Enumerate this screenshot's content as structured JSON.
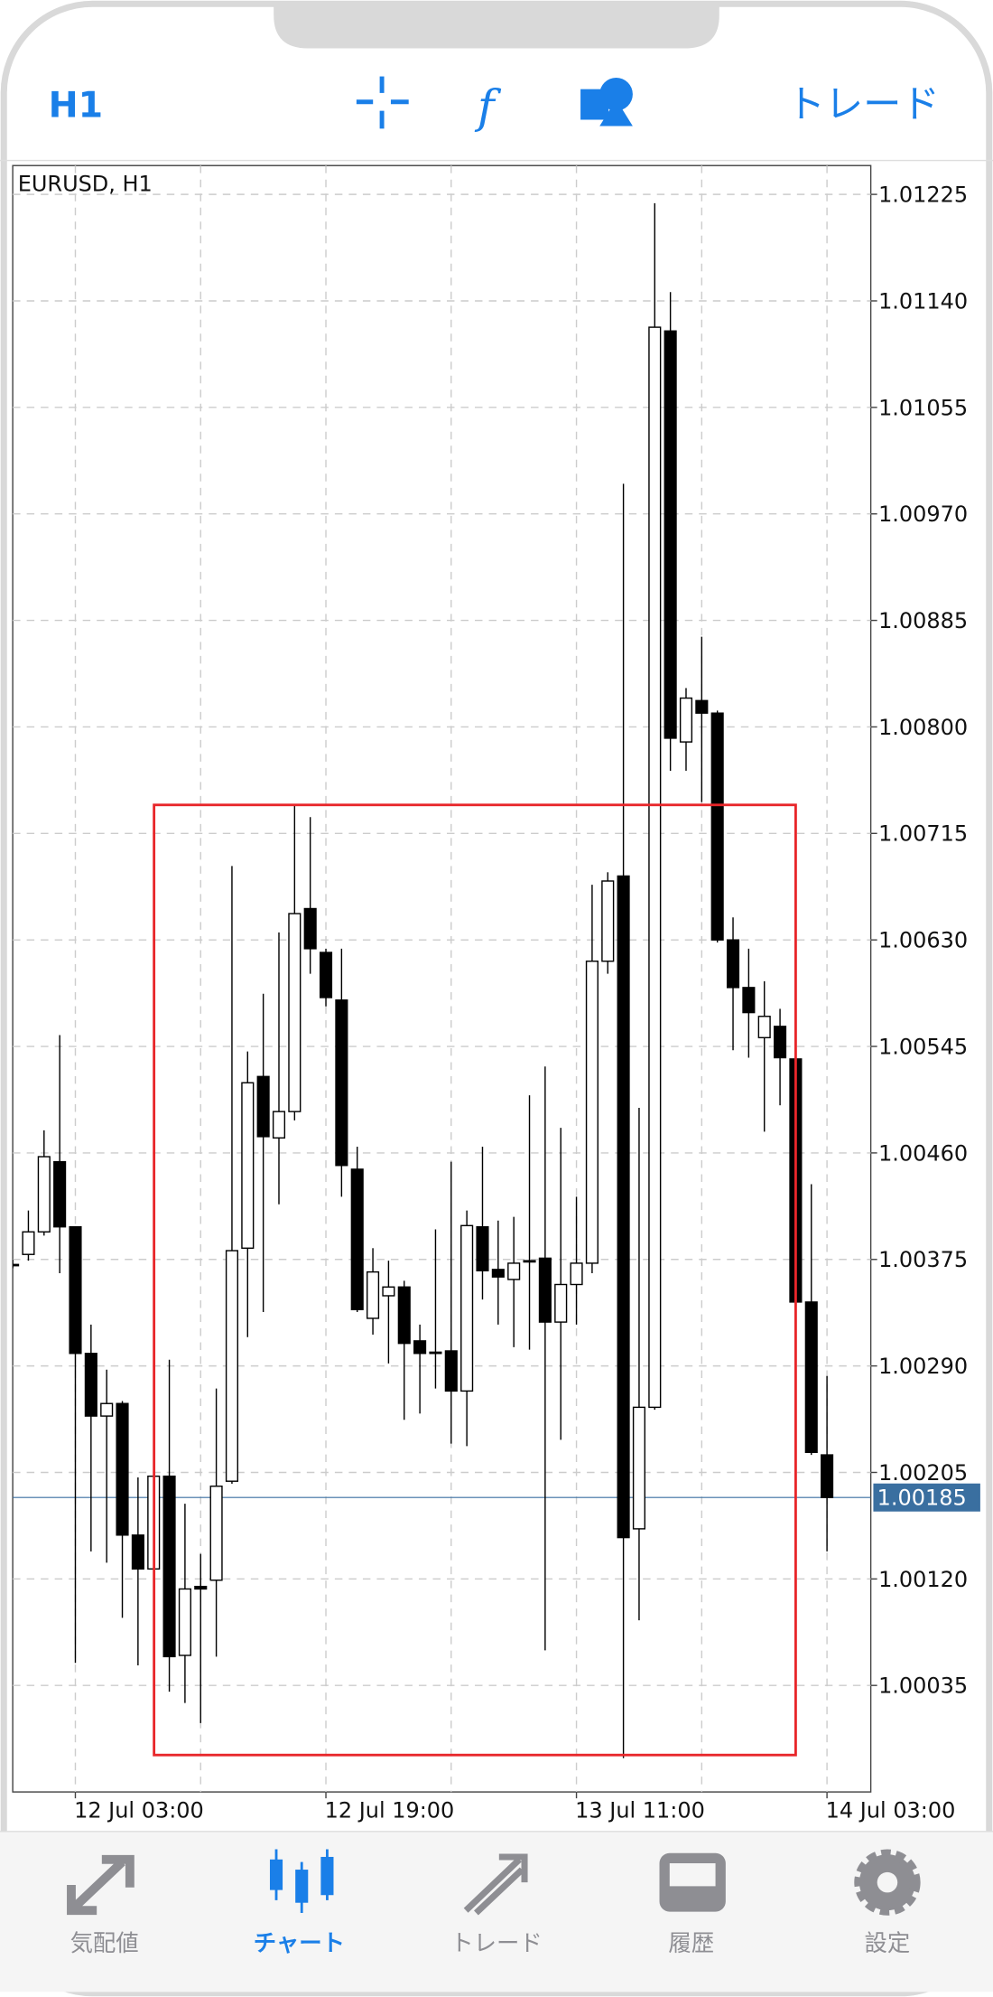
{
  "toolbar": {
    "timeframe": "H1",
    "trade": "トレード"
  },
  "chart_data": {
    "type": "candlestick",
    "title": "EURUSD, H1",
    "categories": [
      null,
      null,
      null,
      null,
      "12 Jul 03:00",
      null,
      null,
      null,
      null,
      null,
      null,
      null,
      null,
      null,
      null,
      null,
      null,
      null,
      null,
      null,
      "12 Jul 19:00",
      null,
      null,
      null,
      null,
      null,
      null,
      null,
      null,
      null,
      null,
      null,
      null,
      null,
      null,
      null,
      "13 Jul 11:00",
      null,
      null,
      null,
      null,
      null,
      null,
      null,
      null,
      null,
      null,
      null,
      null,
      null,
      null,
      null,
      "14 Jul 03:00"
    ],
    "open": [
      1.00371,
      1.00379,
      1.00397,
      1.00453,
      1.00401,
      1.003,
      1.0025,
      1.0026,
      1.00155,
      1.00128,
      1.00202,
      1.00059,
      1.00114,
      1.00119,
      1.00198,
      1.00384,
      1.00521,
      1.00472,
      1.00493,
      1.00655,
      1.0062,
      1.00582,
      1.00447,
      1.00328,
      1.00346,
      1.00353,
      1.0031,
      1.00301,
      1.00302,
      1.0027,
      1.00401,
      1.00367,
      1.00359,
      1.00373,
      1.00376,
      1.00325,
      1.00355,
      1.00372,
      1.00613,
      1.00681,
      1.0016,
      1.00257,
      1.01116,
      1.00788,
      1.00821,
      1.00811,
      1.0063,
      1.00592,
      1.00552,
      1.00561,
      1.00535,
      1.00341,
      1.00219
    ],
    "high": [
      1.00375,
      1.00414,
      1.00478,
      1.00554,
      1.00401,
      1.00323,
      1.00287,
      1.00262,
      1.00201,
      1.00211,
      1.00295,
      1.0018,
      1.0014,
      1.00272,
      1.00689,
      1.00541,
      1.00587,
      1.00636,
      1.00738,
      1.00728,
      1.00623,
      1.00623,
      1.00465,
      1.00384,
      1.00374,
      1.00358,
      1.00323,
      1.00399,
      1.00453,
      1.00414,
      1.00465,
      1.00406,
      1.00409,
      1.00506,
      1.00529,
      1.0048,
      1.00425,
      1.00674,
      1.00684,
      1.00994,
      1.00496,
      1.01218,
      1.01147,
      1.00831,
      1.00872,
      1.00813,
      1.00648,
      1.00623,
      1.00597,
      1.00575,
      1.00536,
      1.00435,
      1.00282
    ],
    "low": [
      1.00368,
      1.00374,
      1.00394,
      1.00364,
      1.00053,
      1.00142,
      1.00133,
      1.00089,
      1.00051,
      1.00125,
      1.0003,
      1.00021,
      1.00005,
      1.00058,
      1.00196,
      1.00313,
      1.00333,
      1.00419,
      1.00486,
      1.00603,
      1.00577,
      1.00425,
      1.00333,
      1.00315,
      1.00292,
      1.00247,
      1.00252,
      1.00272,
      1.00228,
      1.00226,
      1.00343,
      1.00323,
      1.00305,
      1.00303,
      1.00063,
      1.00231,
      1.00323,
      1.00364,
      1.00603,
      0.99977,
      1.00087,
      1.00255,
      1.00765,
      1.00765,
      1.0074,
      1.00628,
      1.00542,
      1.00536,
      1.00477,
      1.00498,
      1.00338,
      1.00219,
      1.00142
    ],
    "close": [
      1.00371,
      1.00397,
      1.00457,
      1.00401,
      1.003,
      1.0025,
      1.0026,
      1.00155,
      1.00128,
      1.00202,
      1.00058,
      1.00112,
      1.00112,
      1.00194,
      1.00382,
      1.00516,
      1.00473,
      1.00493,
      1.00651,
      1.00623,
      1.00584,
      1.0045,
      1.00335,
      1.00365,
      1.00353,
      1.00308,
      1.003,
      1.003,
      1.0027,
      1.00402,
      1.00366,
      1.00361,
      1.00372,
      1.00374,
      1.00325,
      1.00355,
      1.00372,
      1.00613,
      1.00677,
      1.00153,
      1.00257,
      1.01119,
      1.00791,
      1.00823,
      1.00811,
      1.0063,
      1.00592,
      1.00572,
      1.00569,
      1.00536,
      1.00341,
      1.00221,
      1.00185
    ],
    "current": 1.00185,
    "ylim": [
      0.9995,
      1.01248
    ],
    "yticks": [
      1.00035,
      {
        "value": 1.0012,
        "label": "1.00120"
      },
      1.00205,
      {
        "value": 1.0029,
        "label": "1.00290"
      },
      1.00375,
      {
        "value": 1.0046,
        "label": "1.00460"
      },
      1.00545,
      {
        "value": 1.0063,
        "label": "1.00630"
      },
      1.00715,
      {
        "value": 1.008,
        "label": "1.00800"
      },
      1.00885,
      {
        "value": 1.0097,
        "label": "1.00970"
      },
      1.01055,
      {
        "value": 1.0114,
        "label": "1.01140"
      },
      1.01225
    ],
    "grid": true,
    "up_color": "#ffffff",
    "down_color": "#000000",
    "current_color": "#3a6fa0"
  },
  "tabs": [
    "気配値",
    "チャート",
    "トレード",
    "履歴",
    "設定"
  ]
}
